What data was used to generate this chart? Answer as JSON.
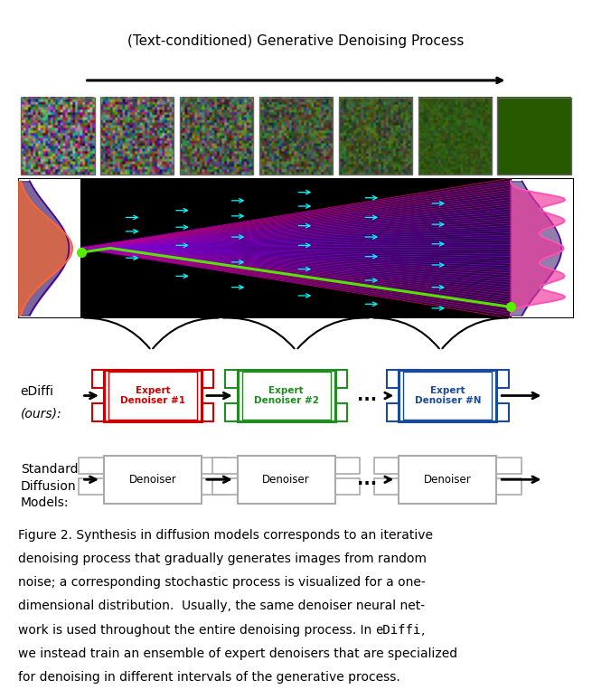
{
  "title": "(Text-conditioned) Generative Denoising Process",
  "bg_color": "#ffffff",
  "caption_lines": [
    "Figure 2. Synthesis in diffusion models corresponds to an iterative",
    "denoising process that gradually generates images from random",
    "noise; a corresponding stochastic process is visualized for a one-",
    "dimensional distribution.  Usually, the same denoiser neural net-",
    "work is used throughout the entire denoising process. In eDiffi,",
    "we instead train an ensemble of expert denoisers that are specialized",
    "for denoising in different intervals of the generative process."
  ],
  "ediffi_label": "eDiffi\n(ours):",
  "standard_label": "Standard\nDiffusion\nModels:",
  "expert_labels": [
    "Expert\nDenoiser #1",
    "Expert\nDenoiser #2",
    "Expert\nDenoiser #N"
  ],
  "expert_colors": [
    "#cc0000",
    "#228B22",
    "#1a4a9a"
  ],
  "denoiser_label": "Denoiser",
  "denoiser_color": "#999999",
  "arrow_color": "#111111",
  "title_fontsize": 11,
  "caption_fontsize": 10
}
